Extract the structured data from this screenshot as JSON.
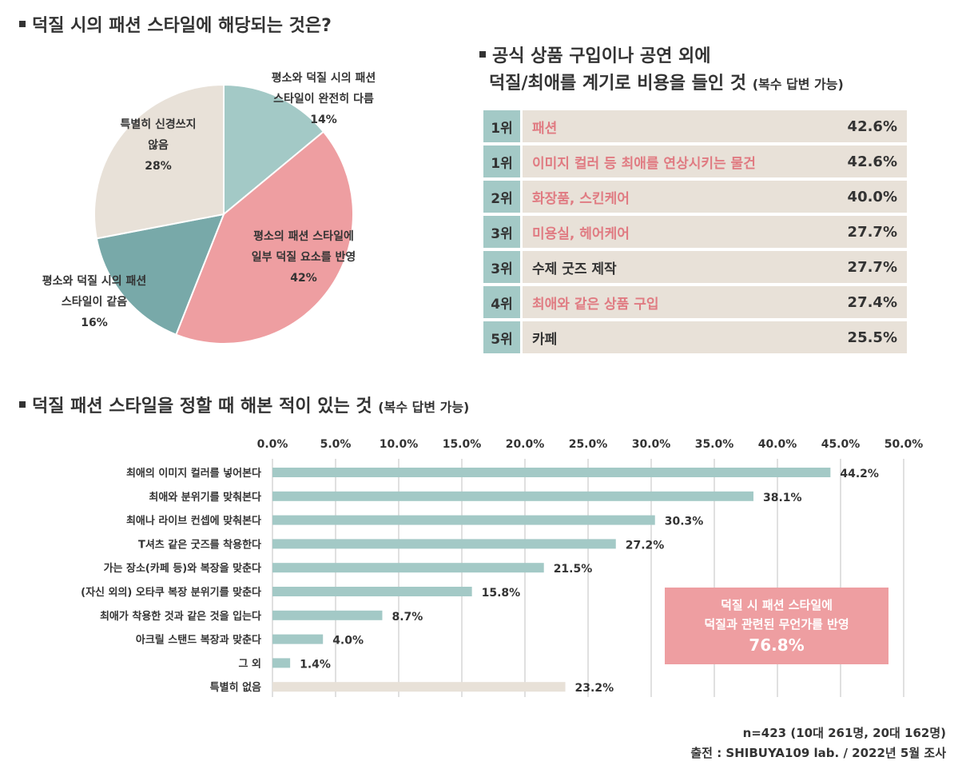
{
  "pie_section": {
    "title": "덕질 시의 패션 스타일에 해당되는 것은?"
  },
  "rank_section": {
    "title_line1": "공식 상품 구입이나 공연 외에",
    "title_line2": "덕질/최애를 계기로 비용을 들인 것",
    "title_note": "(복수 답변 가능)",
    "rows": [
      {
        "rank": "1위",
        "item": "패션",
        "pct": "42.6%",
        "highlight": true
      },
      {
        "rank": "1위",
        "item": "이미지 컬러 등 최애를 연상시키는 물건",
        "pct": "42.6%",
        "highlight": true
      },
      {
        "rank": "2위",
        "item": "화장품, 스킨케어",
        "pct": "40.0%",
        "highlight": true
      },
      {
        "rank": "3위",
        "item": "미용실, 헤어케어",
        "pct": "27.7%",
        "highlight": true
      },
      {
        "rank": "3위",
        "item": "수제 굿즈 제작",
        "pct": "27.7%",
        "highlight": false
      },
      {
        "rank": "4위",
        "item": "최애와 같은 상품 구입",
        "pct": "27.4%",
        "highlight": true
      },
      {
        "rank": "5위",
        "item": "카페",
        "pct": "25.5%",
        "highlight": false
      }
    ]
  },
  "bar_section": {
    "title": "덕질 패션 스타일을 정할 때 해본 적이 있는 것",
    "title_note": "(복수 답변 가능)"
  },
  "callout": {
    "line1": "덕질 시 패션 스타일에",
    "line2": "덕질과 관련된 무언가를 반영",
    "value": "76.8%"
  },
  "source": {
    "line1": "n=423 (10대 261명, 20대 162명)",
    "line2": "출전 : SHIBUYA109 lab. / 2022년 5월 조사"
  },
  "colors": {
    "teal_light": "#a3c9c6",
    "teal_dark": "#78a9a9",
    "pink": "#ee9ea1",
    "beige": "#e8e1d8",
    "pink_text": "#e07b82"
  },
  "chart_data": [
    {
      "type": "pie",
      "title": "덕질 시의 패션 스타일에 해당되는 것은?",
      "slices": [
        {
          "label_lines": [
            "평소와 덕질 시의 패션",
            "스타일이 완전히 다름"
          ],
          "value": 14,
          "value_label": "14%",
          "color": "#a3c9c6"
        },
        {
          "label_lines": [
            "평소의 패션 스타일에",
            "일부 덕질 요소를 반영"
          ],
          "value": 42,
          "value_label": "42%",
          "color": "#ee9ea1"
        },
        {
          "label_lines": [
            "평소와 덕질 시의 패션",
            "스타일이 같음"
          ],
          "value": 16,
          "value_label": "16%",
          "color": "#78a9a9"
        },
        {
          "label_lines": [
            "특별히 신경쓰지",
            "않음"
          ],
          "value": 28,
          "value_label": "28%",
          "color": "#e8e1d8"
        }
      ]
    },
    {
      "type": "bar",
      "orientation": "horizontal",
      "title": "덕질 패션 스타일을 정할 때 해본 적이 있는 것",
      "xlim": [
        0,
        50
      ],
      "ticks": [
        "0.0%",
        "5.0%",
        "10.0%",
        "15.0%",
        "20.0%",
        "25.0%",
        "30.0%",
        "35.0%",
        "40.0%",
        "45.0%",
        "50.0%"
      ],
      "categories": [
        "최애의 이미지 컬러를 넣어본다",
        "최애와 분위기를 맞춰본다",
        "최애나 라이브 컨셉에 맞춰본다",
        "T셔츠 같은 굿즈를 착용한다",
        "가는 장소(카페 등)와 복장을 맞춘다",
        "(자신 외의) 오타쿠 복장 분위기를 맞춘다",
        "최애가 착용한 것과 같은 것을 입는다",
        "아크릴 스탠드 복장과 맞춘다",
        "그 외",
        "특별히 없음"
      ],
      "values": [
        44.2,
        38.1,
        30.3,
        27.2,
        21.5,
        15.8,
        8.7,
        4.0,
        1.4,
        23.2
      ],
      "value_labels": [
        "44.2%",
        "38.1%",
        "30.3%",
        "27.2%",
        "21.5%",
        "15.8%",
        "8.7%",
        "4.0%",
        "1.4%",
        "23.2%"
      ],
      "bar_colors": [
        "#a3c9c6",
        "#a3c9c6",
        "#a3c9c6",
        "#a3c9c6",
        "#a3c9c6",
        "#a3c9c6",
        "#a3c9c6",
        "#a3c9c6",
        "#a3c9c6",
        "#e8e1d8"
      ]
    }
  ]
}
